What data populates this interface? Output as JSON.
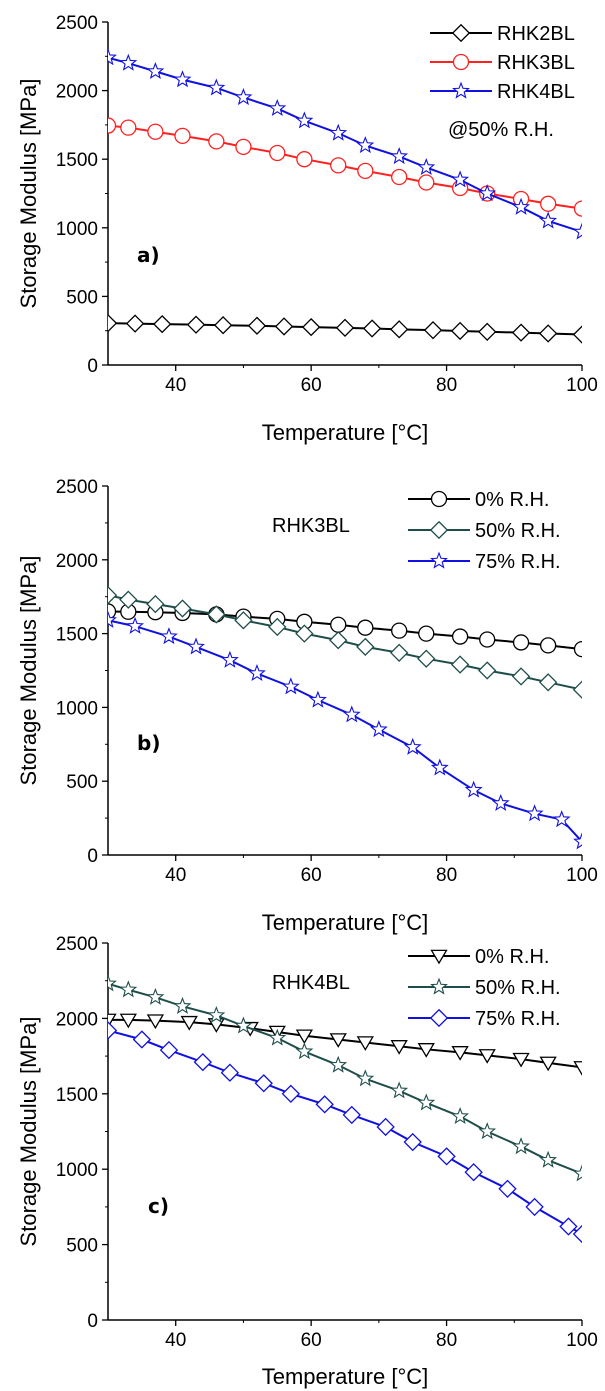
{
  "chart_data": [
    {
      "type": "line",
      "panel_label": "a)",
      "annotation": "@50% R.H.",
      "xlabel": "Temperature [°C]",
      "ylabel": "Storage Modulus [MPa]",
      "xlim": [
        30,
        100
      ],
      "ylim": [
        0,
        2500
      ],
      "xticks": [
        40,
        60,
        80,
        100
      ],
      "yticks": [
        0,
        500,
        1000,
        1500,
        2000,
        2500
      ],
      "legend_position": "top-right",
      "series": [
        {
          "name": "RHK2BL",
          "color": "#000000",
          "marker": "diamond",
          "x": [
            30,
            34,
            38,
            43,
            47,
            52,
            56,
            60,
            65,
            69,
            73,
            78,
            82,
            86,
            91,
            95,
            100
          ],
          "y": [
            305,
            302,
            298,
            294,
            290,
            286,
            281,
            276,
            271,
            266,
            260,
            254,
            248,
            242,
            236,
            230,
            222
          ]
        },
        {
          "name": "RHK3BL",
          "color": "#ff2020",
          "marker": "circle",
          "x": [
            30,
            33,
            37,
            41,
            46,
            50,
            55,
            59,
            64,
            68,
            73,
            77,
            82,
            86,
            91,
            95,
            100
          ],
          "y": [
            1745,
            1730,
            1700,
            1670,
            1630,
            1590,
            1545,
            1500,
            1455,
            1415,
            1370,
            1330,
            1290,
            1250,
            1210,
            1175,
            1140
          ]
        },
        {
          "name": "RHK4BL",
          "color": "#1010e0",
          "marker": "star",
          "x": [
            30,
            33,
            37,
            41,
            46,
            50,
            55,
            59,
            64,
            68,
            73,
            77,
            82,
            86,
            91,
            95,
            100
          ],
          "y": [
            2240,
            2200,
            2140,
            2080,
            2020,
            1950,
            1870,
            1780,
            1690,
            1600,
            1520,
            1440,
            1350,
            1250,
            1150,
            1050,
            970
          ]
        }
      ]
    },
    {
      "type": "line",
      "panel_label": "b)",
      "annotation": "RHK3BL",
      "xlabel": "Temperature [°C]",
      "ylabel": "Storage Modulus [MPa]",
      "xlim": [
        30,
        100
      ],
      "ylim": [
        0,
        2500
      ],
      "xticks": [
        40,
        60,
        80,
        100
      ],
      "yticks": [
        0,
        500,
        1000,
        1500,
        2000,
        2500
      ],
      "legend_position": "top-right",
      "series": [
        {
          "name": "0% R.H.",
          "color": "#000000",
          "marker": "circle",
          "x": [
            30,
            33,
            37,
            41,
            46,
            50,
            55,
            59,
            64,
            68,
            73,
            77,
            82,
            86,
            91,
            95,
            100
          ],
          "y": [
            1650,
            1648,
            1645,
            1640,
            1630,
            1615,
            1600,
            1580,
            1560,
            1540,
            1520,
            1500,
            1480,
            1460,
            1440,
            1420,
            1395
          ]
        },
        {
          "name": "50% R.H.",
          "color": "#1f4e4a",
          "marker": "diamond",
          "x": [
            30,
            33,
            37,
            41,
            46,
            50,
            55,
            59,
            64,
            68,
            73,
            77,
            82,
            86,
            91,
            95,
            100
          ],
          "y": [
            1760,
            1730,
            1700,
            1670,
            1630,
            1590,
            1545,
            1500,
            1455,
            1410,
            1370,
            1330,
            1290,
            1250,
            1210,
            1170,
            1120
          ]
        },
        {
          "name": "75% R.H.",
          "color": "#1010e0",
          "marker": "star",
          "x": [
            30,
            34,
            39,
            43,
            48,
            52,
            57,
            61,
            66,
            70,
            75,
            79,
            84,
            88,
            93,
            97,
            100
          ],
          "y": [
            1590,
            1550,
            1480,
            1410,
            1320,
            1230,
            1140,
            1050,
            950,
            850,
            730,
            590,
            440,
            350,
            280,
            240,
            90
          ]
        }
      ]
    },
    {
      "type": "line",
      "panel_label": "c)",
      "annotation": "RHK4BL",
      "xlabel": "Temperature [°C]",
      "ylabel": "Storage Modulus [MPa]",
      "xlim": [
        30,
        100
      ],
      "ylim": [
        0,
        2500
      ],
      "xticks": [
        40,
        60,
        80,
        100
      ],
      "yticks": [
        0,
        500,
        1000,
        1500,
        2000,
        2500
      ],
      "legend_position": "top-right",
      "series": [
        {
          "name": "0% R.H.",
          "color": "#000000",
          "marker": "triangle-down",
          "x": [
            30,
            33,
            37,
            42,
            46,
            51,
            55,
            59,
            64,
            68,
            73,
            77,
            82,
            86,
            91,
            95,
            100
          ],
          "y": [
            1990,
            1990,
            1985,
            1975,
            1960,
            1935,
            1910,
            1885,
            1860,
            1840,
            1815,
            1795,
            1775,
            1755,
            1730,
            1705,
            1675
          ]
        },
        {
          "name": "50% R.H.",
          "color": "#1f4e4a",
          "marker": "star",
          "x": [
            30,
            33,
            37,
            41,
            46,
            50,
            55,
            59,
            64,
            68,
            73,
            77,
            82,
            86,
            91,
            95,
            100
          ],
          "y": [
            2230,
            2190,
            2140,
            2080,
            2020,
            1950,
            1870,
            1780,
            1690,
            1600,
            1520,
            1440,
            1350,
            1250,
            1150,
            1060,
            970
          ]
        },
        {
          "name": "75% R.H.",
          "color": "#1010e0",
          "marker": "diamond",
          "x": [
            30,
            35,
            39,
            44,
            48,
            53,
            57,
            62,
            66,
            71,
            75,
            80,
            84,
            89,
            93,
            98,
            100
          ],
          "y": [
            1920,
            1860,
            1790,
            1710,
            1640,
            1570,
            1500,
            1430,
            1360,
            1280,
            1180,
            1085,
            980,
            870,
            750,
            620,
            570
          ]
        }
      ]
    }
  ]
}
